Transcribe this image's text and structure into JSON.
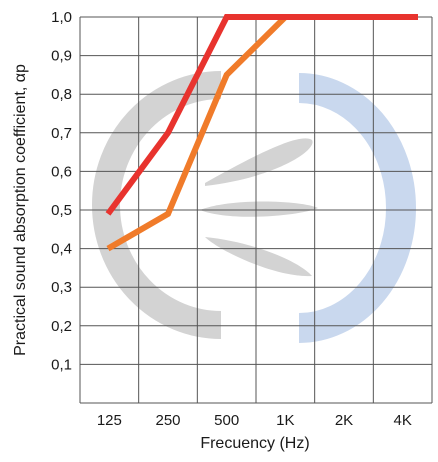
{
  "chart_data": {
    "type": "line",
    "title": "",
    "xlabel": "Frecuency (Hz)",
    "ylabel": "Practical sound absorption coefficient, αp",
    "categories": [
      "125",
      "250",
      "500",
      "1K",
      "2K",
      "4K"
    ],
    "ylim": [
      0,
      1.0
    ],
    "yticks": [
      "0,1",
      "0,2",
      "0,3",
      "0,4",
      "0,5",
      "0,6",
      "0,7",
      "0,8",
      "0,9",
      "1,0"
    ],
    "grid": true,
    "legend": "none",
    "series": [
      {
        "color": "#e8332e",
        "values": [
          0.49,
          0.7,
          1.0,
          1.0,
          1.0,
          1.0
        ]
      },
      {
        "color": "#f07b2a",
        "values": [
          0.4,
          0.49,
          0.85,
          1.0,
          1.0,
          1.0
        ]
      }
    ]
  },
  "watermark": {
    "colors": [
      "#d3d3d3",
      "#c9d8ee"
    ]
  }
}
